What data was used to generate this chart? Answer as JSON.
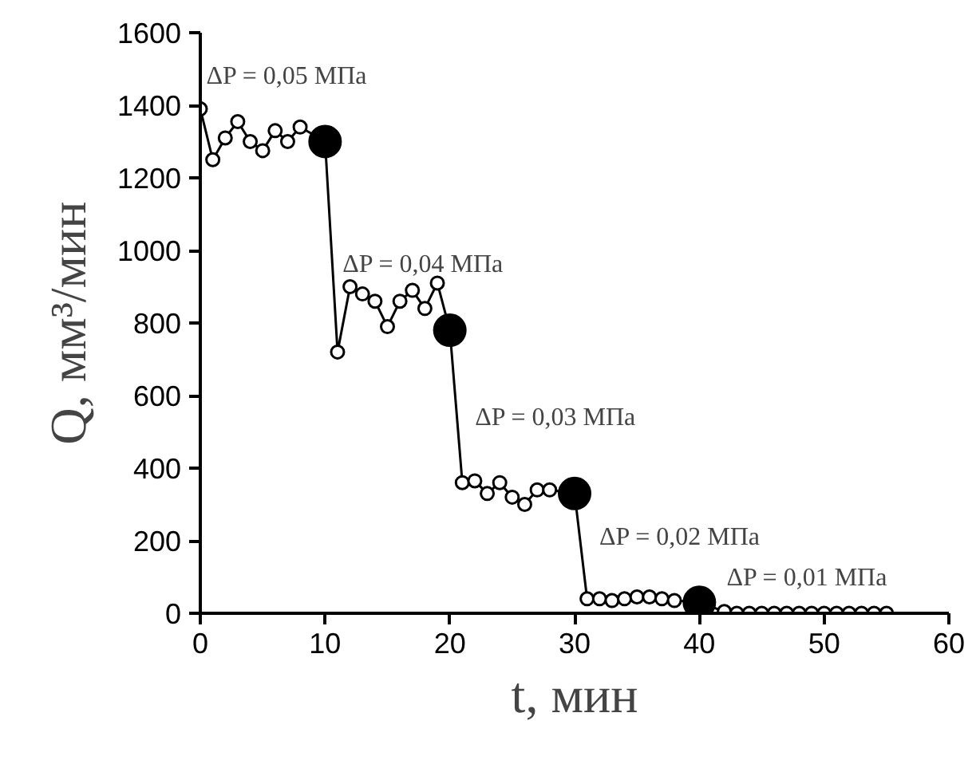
{
  "chart_data": {
    "type": "line",
    "xlabel": "t, мин",
    "ylabel": "Q, мм³/мин",
    "xlim": [
      0,
      60
    ],
    "xticks": [
      0,
      10,
      20,
      30,
      40,
      50,
      60
    ],
    "ylim": [
      0,
      1600
    ],
    "yticks": [
      0,
      200,
      400,
      600,
      800,
      1000,
      1200,
      1400,
      1600
    ],
    "grid": false,
    "marker": "circle",
    "line_style": "solid",
    "series": [
      {
        "color": "#000000",
        "x": [
          0,
          1,
          2,
          3,
          4,
          5,
          6,
          7,
          8,
          10,
          11,
          12,
          13,
          14,
          15,
          16,
          17,
          18,
          19,
          20,
          21,
          22,
          23,
          24,
          25,
          26,
          27,
          28,
          30,
          31,
          32,
          33,
          34,
          35,
          36,
          37,
          38,
          40,
          42,
          43,
          44,
          45,
          46,
          47,
          48,
          49,
          50,
          51,
          52,
          53,
          54,
          55
        ],
        "values": [
          1390,
          1250,
          1310,
          1355,
          1300,
          1275,
          1330,
          1300,
          1340,
          1300,
          720,
          900,
          880,
          860,
          790,
          860,
          890,
          840,
          910,
          780,
          360,
          365,
          330,
          360,
          320,
          300,
          340,
          340,
          330,
          40,
          40,
          35,
          40,
          45,
          45,
          40,
          35,
          30,
          5,
          0,
          0,
          0,
          0,
          0,
          0,
          0,
          0,
          0,
          0,
          0,
          0,
          0
        ]
      },
      {
        "type": "scatter",
        "color": "#000000",
        "x": [
          10,
          20,
          30,
          40
        ],
        "values": [
          1300,
          780,
          330,
          30
        ]
      }
    ],
    "annotations": [
      "ΔP = 0,05 МПа",
      "ΔP = 0,04 МПа",
      "ΔP = 0,03 МПа",
      "ΔP = 0,02 МПа",
      "ΔP = 0,01 МПа"
    ]
  }
}
